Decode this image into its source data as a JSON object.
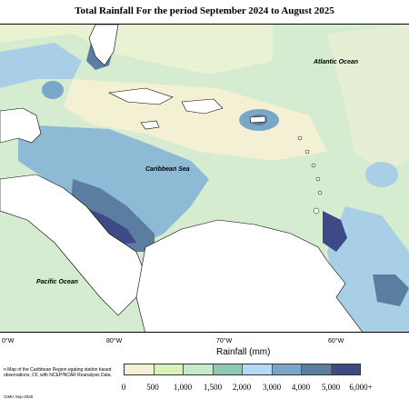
{
  "title": "Total Rainfall For the period September 2024 to August 2025",
  "labels": {
    "atlantic": "Atlantic Ocean",
    "caribbean": "Caribbean Sea",
    "pacific": "Pacific Ocean"
  },
  "longitudes": [
    "0°W",
    "80°W",
    "70°W",
    "60°W"
  ],
  "legend": {
    "title": "Rainfall (mm)",
    "ticks": [
      "0",
      "500",
      "1,000",
      "1,500",
      "2,000",
      "3,000",
      "4,000",
      "5,000",
      "6,000+"
    ],
    "colors": [
      "#f4f1d4",
      "#d9f2b9",
      "#c4ebcc",
      "#8ec9b4",
      "#b5daf5",
      "#7aa7c8",
      "#5b7ea0",
      "#3d4a86"
    ]
  },
  "footnote": "Rainfall Map of the Caribbean Region aggregating station based observations, ECMWF, with NCEP/NCAR Reanalysis Data.",
  "footnote_visible": "n Map of the Caribbean Region egating station based observations, CF, with NCEP/NCAR Reanalysis Data.",
  "credit": "CIMH Sep-2025",
  "colors": {
    "land": "#ffffff",
    "background_rain": "#d7ecd2"
  }
}
